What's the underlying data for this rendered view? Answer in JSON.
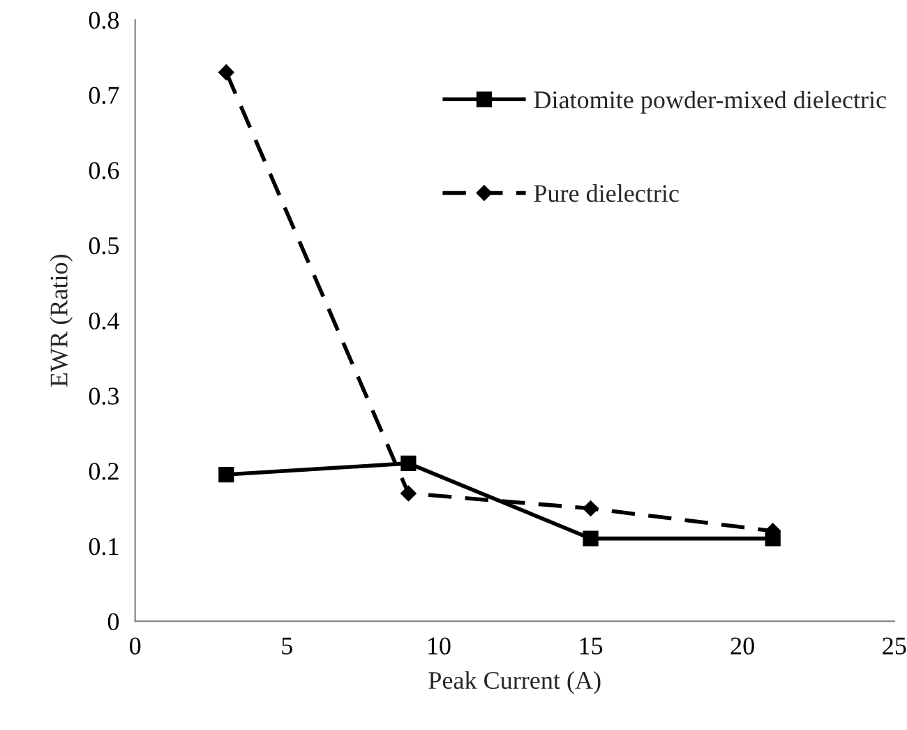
{
  "chart_data": {
    "type": "line",
    "xlabel": "Peak Current (A)",
    "ylabel": "EWR (Ratio)",
    "xlim": [
      0,
      25
    ],
    "xticks": [
      0,
      5,
      10,
      15,
      20,
      25
    ],
    "ylim": [
      0,
      0.8
    ],
    "yticks": [
      0,
      {
        "value": 0.1,
        "label": "0.1"
      },
      {
        "value": 0.2,
        "label": "0.2"
      },
      {
        "value": 0.3,
        "label": "0.3"
      },
      {
        "value": 0.4,
        "label": "0.4"
      },
      {
        "value": 0.5,
        "label": "0.5"
      },
      {
        "value": 0.6,
        "label": "0.6"
      },
      {
        "value": 0.7,
        "label": "0.7"
      },
      {
        "value": 0.8,
        "label": "0.8"
      }
    ],
    "x": [
      3,
      9,
      15,
      21
    ],
    "grid": false,
    "legend": "top right",
    "series": [
      {
        "name": "Diatomite powder-mixed dielectric",
        "color": "#000000",
        "values": [
          0.195,
          0.21,
          0.11,
          0.11
        ],
        "marker": "square",
        "line_style": "solid"
      },
      {
        "name": "Pure dielectric",
        "color": "#000000",
        "values": [
          0.73,
          0.17,
          0.15,
          0.12
        ],
        "marker": "diamond",
        "line_style": "dashed"
      }
    ]
  }
}
